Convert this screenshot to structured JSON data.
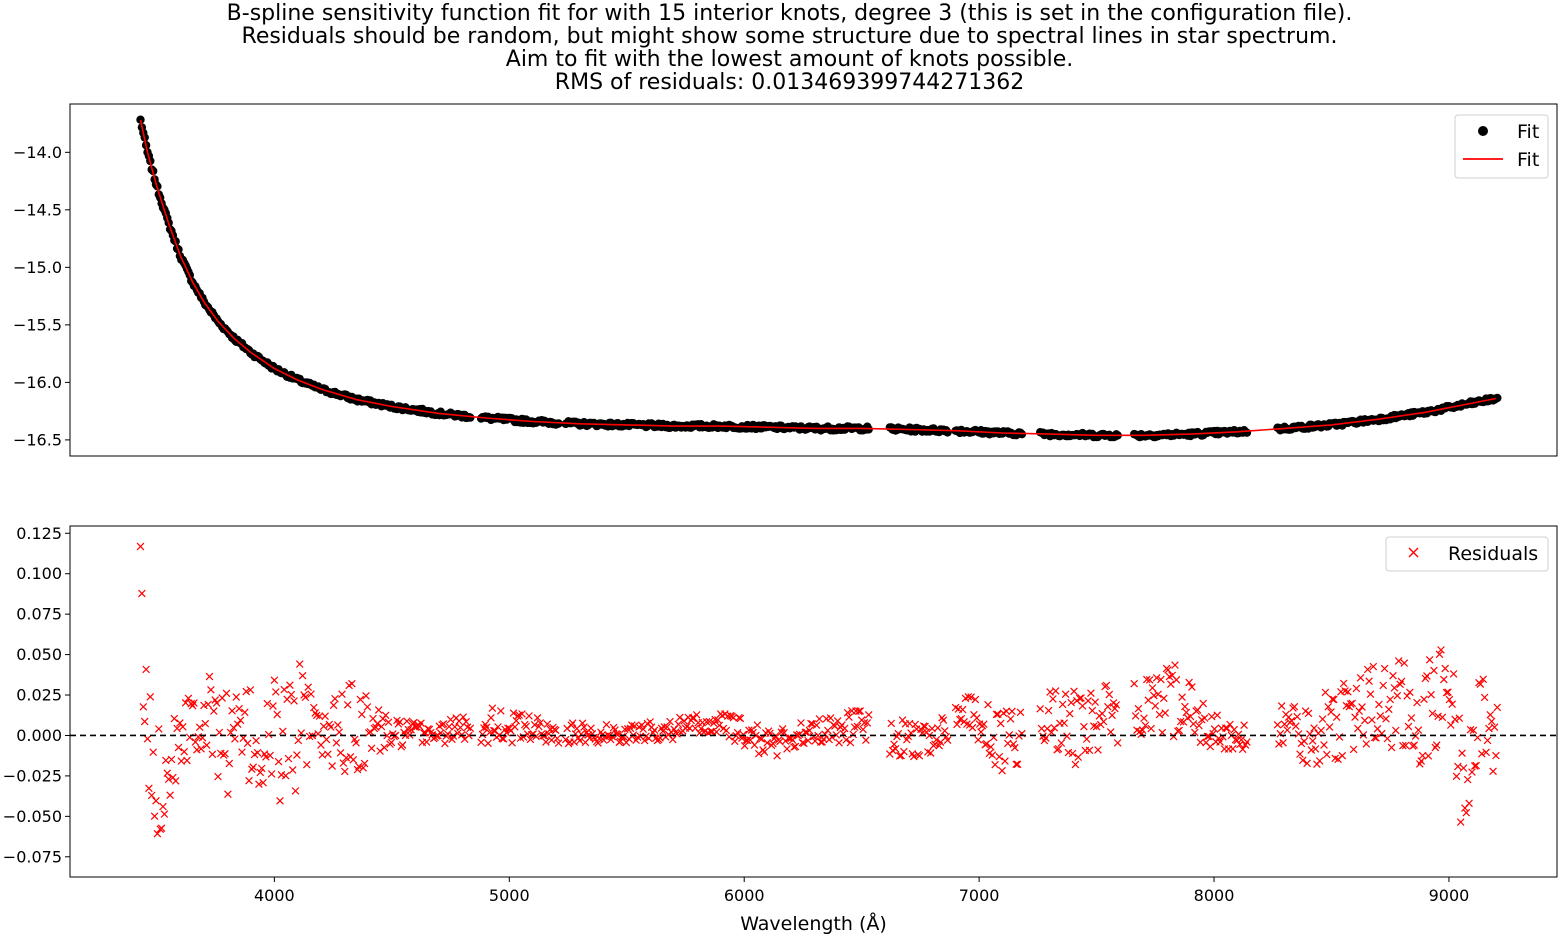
{
  "title_lines": [
    "B-spline sensitivity function fit for with 15 interior knots, degree 3 (this is set in the configuration file).",
    "Residuals should be random, but might show some structure due to spectral lines in star spectrum.",
    "Aim to fit with the lowest amount of knots possible.",
    "RMS of residuals: 0.013469399744271362"
  ],
  "colors": {
    "points": "#000000",
    "fit_line": "#ff0000",
    "residuals": "#ff0000",
    "zero_line": "#000000"
  },
  "chart_data": [
    {
      "type": "line",
      "xlim": [
        3130,
        9460
      ],
      "ylim": [
        -16.64,
        -13.58
      ],
      "yticks": [
        -14.0,
        -14.5,
        -15.0,
        -15.5,
        -16.0,
        -16.5
      ],
      "ytick_labels": [
        "−14.0",
        "−14.5",
        "−15.0",
        "−15.5",
        "−16.0",
        "−16.5"
      ],
      "xticks_shown": false,
      "legend": {
        "placement": "top-right",
        "entries": [
          {
            "label": "Fit",
            "marker": "filled-circle",
            "color": "#000000"
          },
          {
            "label": "Fit",
            "marker": "line",
            "color": "#ff0000"
          }
        ]
      },
      "fit_curve": {
        "x": [
          3430,
          3460,
          3500,
          3550,
          3600,
          3650,
          3700,
          3760,
          3830,
          3900,
          4000,
          4100,
          4200,
          4350,
          4500,
          4700,
          4900,
          5100,
          5300,
          5500,
          5700,
          5900,
          6100,
          6300,
          6500,
          6700,
          6900,
          7100,
          7300,
          7500,
          7700,
          7900,
          8100,
          8300,
          8500,
          8700,
          8900,
          9000,
          9100,
          9200
        ],
        "y": [
          -13.72,
          -14.0,
          -14.3,
          -14.62,
          -14.9,
          -15.12,
          -15.3,
          -15.47,
          -15.62,
          -15.74,
          -15.88,
          -15.98,
          -16.06,
          -16.15,
          -16.21,
          -16.27,
          -16.31,
          -16.34,
          -16.36,
          -16.37,
          -16.38,
          -16.38,
          -16.39,
          -16.4,
          -16.4,
          -16.41,
          -16.42,
          -16.44,
          -16.45,
          -16.46,
          -16.46,
          -16.45,
          -16.43,
          -16.4,
          -16.37,
          -16.32,
          -16.26,
          -16.22,
          -16.18,
          -16.14
        ]
      },
      "data_segments": [
        [
          3430,
          4835
        ],
        [
          4880,
          5210
        ],
        [
          5240,
          6530
        ],
        [
          6620,
          6870
        ],
        [
          6900,
          7185
        ],
        [
          7260,
          7590
        ],
        [
          7660,
          8140
        ],
        [
          8270,
          9210
        ]
      ]
    },
    {
      "type": "scatter",
      "xlabel": "Wavelength (Å)",
      "xlim": [
        3130,
        9460
      ],
      "ylim": [
        -0.0875,
        0.1295
      ],
      "xticks": [
        4000,
        5000,
        6000,
        7000,
        8000,
        9000
      ],
      "xtick_labels": [
        "4000",
        "5000",
        "6000",
        "7000",
        "8000",
        "9000"
      ],
      "yticks": [
        0.125,
        0.1,
        0.075,
        0.05,
        0.025,
        0.0,
        -0.025,
        -0.05,
        -0.075
      ],
      "ytick_labels": [
        "0.125",
        "0.100",
        "0.075",
        "0.050",
        "0.025",
        "0.000",
        "−0.025",
        "−0.050",
        "−0.075"
      ],
      "zero_line": 0.0,
      "legend": {
        "placement": "top-right",
        "entries": [
          {
            "label": "Residuals",
            "marker": "x",
            "color": "#ff0000"
          }
        ]
      },
      "residual_envelope": [
        {
          "x": 3430,
          "lo": 0.075,
          "hi": 0.12
        },
        {
          "x": 3450,
          "lo": -0.045,
          "hi": 0.055
        },
        {
          "x": 3490,
          "lo": -0.08,
          "hi": 0.02
        },
        {
          "x": 3530,
          "lo": -0.05,
          "hi": -0.01
        },
        {
          "x": 3600,
          "lo": -0.02,
          "hi": 0.035
        },
        {
          "x": 3700,
          "lo": -0.01,
          "hi": 0.04
        },
        {
          "x": 3800,
          "lo": -0.037,
          "hi": 0.03
        },
        {
          "x": 3900,
          "lo": -0.035,
          "hi": 0.03
        },
        {
          "x": 3970,
          "lo": -0.05,
          "hi": 0.035
        },
        {
          "x": 4100,
          "lo": -0.037,
          "hi": 0.048
        },
        {
          "x": 4200,
          "lo": -0.015,
          "hi": 0.012
        },
        {
          "x": 4340,
          "lo": -0.03,
          "hi": 0.04
        },
        {
          "x": 4500,
          "lo": -0.008,
          "hi": 0.01
        },
        {
          "x": 4700,
          "lo": -0.005,
          "hi": 0.008
        },
        {
          "x": 4920,
          "lo": -0.005,
          "hi": 0.02
        },
        {
          "x": 5200,
          "lo": -0.005,
          "hi": 0.008
        },
        {
          "x": 5500,
          "lo": -0.005,
          "hi": 0.007
        },
        {
          "x": 5900,
          "lo": 0.0,
          "hi": 0.015
        },
        {
          "x": 6100,
          "lo": -0.015,
          "hi": 0.005
        },
        {
          "x": 6300,
          "lo": -0.005,
          "hi": 0.01
        },
        {
          "x": 6500,
          "lo": -0.005,
          "hi": 0.018
        },
        {
          "x": 6650,
          "lo": -0.015,
          "hi": 0.01
        },
        {
          "x": 6800,
          "lo": -0.012,
          "hi": 0.008
        },
        {
          "x": 6950,
          "lo": 0.005,
          "hi": 0.025
        },
        {
          "x": 7100,
          "lo": -0.025,
          "hi": 0.015
        },
        {
          "x": 7300,
          "lo": -0.005,
          "hi": 0.028
        },
        {
          "x": 7400,
          "lo": -0.02,
          "hi": 0.03
        },
        {
          "x": 7550,
          "lo": -0.01,
          "hi": 0.032
        },
        {
          "x": 7700,
          "lo": -0.005,
          "hi": 0.035
        },
        {
          "x": 7850,
          "lo": 0.0,
          "hi": 0.045
        },
        {
          "x": 8000,
          "lo": -0.01,
          "hi": 0.015
        },
        {
          "x": 8100,
          "lo": -0.015,
          "hi": 0.005
        },
        {
          "x": 8300,
          "lo": -0.005,
          "hi": 0.02
        },
        {
          "x": 8400,
          "lo": -0.02,
          "hi": 0.015
        },
        {
          "x": 8550,
          "lo": -0.015,
          "hi": 0.04
        },
        {
          "x": 8750,
          "lo": -0.012,
          "hi": 0.048
        },
        {
          "x": 8900,
          "lo": -0.025,
          "hi": 0.045
        },
        {
          "x": 9000,
          "lo": 0.01,
          "hi": 0.062
        },
        {
          "x": 9050,
          "lo": -0.055,
          "hi": 0.01
        },
        {
          "x": 9150,
          "lo": -0.025,
          "hi": 0.042
        },
        {
          "x": 9200,
          "lo": -0.03,
          "hi": 0.02
        }
      ]
    }
  ]
}
